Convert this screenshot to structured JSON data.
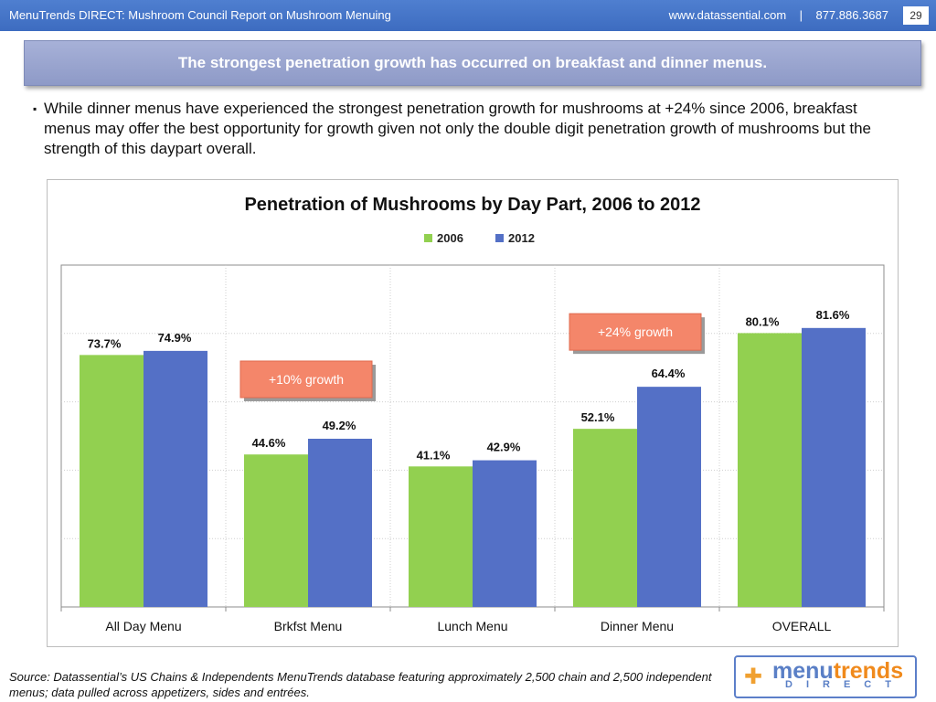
{
  "header": {
    "title": "MenuTrends DIRECT: Mushroom Council Report on Mushroom Menuing",
    "contact": "www.datassential.com    |    877.886.3687",
    "page_number": "29"
  },
  "banner": {
    "text": "The strongest penetration growth has occurred on breakfast and dinner menus."
  },
  "bullet": {
    "mark": "▪",
    "text": "While dinner menus have experienced the strongest penetration growth for mushrooms at +24% since 2006, breakfast menus may offer the best opportunity for growth given not only the double digit penetration growth of mushrooms but the strength of this daypart overall."
  },
  "chart_data": {
    "type": "bar",
    "title": "Penetration of Mushrooms by Day Part, 2006 to 2012",
    "categories": [
      "All Day Menu",
      "Brkfst Menu",
      "Lunch Menu",
      "Dinner Menu",
      "OVERALL"
    ],
    "series": [
      {
        "name": "2006",
        "color": "#92d050",
        "values": [
          73.7,
          44.6,
          41.1,
          52.1,
          80.1
        ],
        "labels": [
          "73.7%",
          "44.6%",
          "41.1%",
          "52.1%",
          "80.1%"
        ]
      },
      {
        "name": "2012",
        "color": "#5470c6",
        "values": [
          74.9,
          49.2,
          42.9,
          64.4,
          81.6
        ],
        "labels": [
          "74.9%",
          "49.2%",
          "42.9%",
          "64.4%",
          "81.6%"
        ]
      }
    ],
    "ylim": [
      0,
      100
    ],
    "grid": true,
    "legend": "top-center",
    "annotations": [
      {
        "text": "+10% growth",
        "category": "Brkfst Menu",
        "color": "#f4866a"
      },
      {
        "text": "+24% growth",
        "category": "Dinner Menu",
        "color": "#f4866a"
      }
    ]
  },
  "footer": {
    "source": "Source: Datassential’s US Chains & Independents MenuTrends database featuring approximately 2,500 chain and 2,500 independent menus; data pulled across appetizers, sides and entrées."
  },
  "logo": {
    "word_a": "menu",
    "word_b": "trends",
    "word_c": "DIRECT",
    "icon": "puzzle-icon"
  }
}
